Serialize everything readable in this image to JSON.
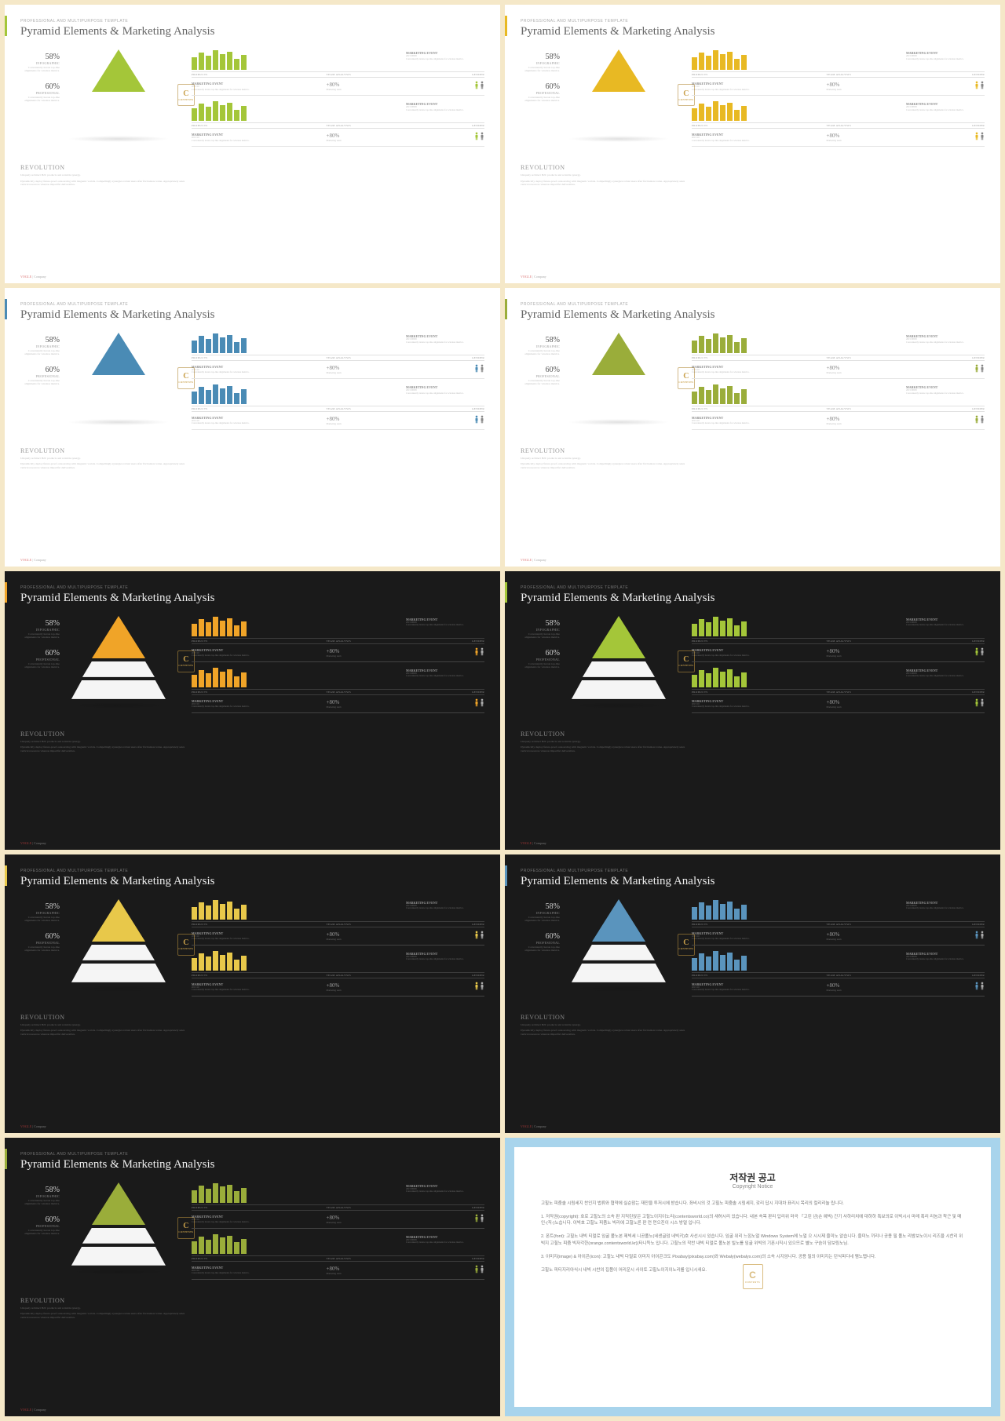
{
  "page_bg": "#f5e8c8",
  "pretitle": "PROFESSIONAL AND MULTIPURPOSE  TEMPLATE",
  "title": "Pyramid Elements & Marketing Analysis",
  "stat1": {
    "v": "58%",
    "l": "INFOGRAPHIC",
    "d": "Conveniently iterate top-line alignments for wireless metrics."
  },
  "stat2": {
    "v": "60%",
    "l": "PROFESIONAL",
    "d": "Conveniently iterate top-line alignments for wireless metrics."
  },
  "rev": {
    "t": "REVOLUTION",
    "d1": "Uniquely architect B2C products and scalable synergy.",
    "d2": "Dynamically deploy future-proof outsourcing with magnetic vortals. Compellingly synergize robust users after frictionless value. Appropriately seize vertical resources whereas impactful deliverables."
  },
  "badge": {
    "c": "C",
    "t": "CONTENTS"
  },
  "bars": [
    60,
    85,
    70,
    95,
    78,
    88,
    55,
    72
  ],
  "headers": {
    "p": "PRODUCTS",
    "t": "TEAM ANALYSIS",
    "g": "GENDER"
  },
  "me": {
    "t": "MARKETING EVENT",
    "date": "2015/08/08",
    "d": "Conveniently iterate top-line alignments for wireless metrics."
  },
  "pct": {
    "v": "+80%",
    "d": "Marketing team"
  },
  "footer": {
    "brand": "VOGLE",
    "co": " | Company"
  },
  "slides": [
    {
      "bg": "light",
      "accent": "#a4c639",
      "pyr": "#a4c639",
      "bar": "#a4c639",
      "p1": "#a4c639",
      "p2": "#888"
    },
    {
      "bg": "light",
      "accent": "#e8b923",
      "pyr": "#e8b923",
      "bar": "#e8b923",
      "p1": "#e8b923",
      "p2": "#888"
    },
    {
      "bg": "light",
      "accent": "#4a8bb5",
      "pyr": "#4a8bb5",
      "bar": "#4a8bb5",
      "p1": "#4a8bb5",
      "p2": "#888"
    },
    {
      "bg": "light",
      "accent": "#9aad3a",
      "pyr": "#9aad3a",
      "bar": "#9aad3a",
      "p1": "#9aad3a",
      "p2": "#888"
    },
    {
      "bg": "dark",
      "accent": "#f0a428",
      "pyr": "#f0a428",
      "bar": "#f0a428",
      "p1": "#f0a428",
      "p2": "#aaa"
    },
    {
      "bg": "dark",
      "accent": "#a4c639",
      "pyr": "#a4c639",
      "bar": "#a4c639",
      "p1": "#a4c639",
      "p2": "#aaa"
    },
    {
      "bg": "dark",
      "accent": "#e8c84a",
      "pyr": "#e8c84a",
      "bar": "#e8c84a",
      "p1": "#e8c84a",
      "p2": "#aaa"
    },
    {
      "bg": "dark",
      "accent": "#5a94bd",
      "pyr": "#5a94bd",
      "bar": "#5a94bd",
      "p1": "#5a94bd",
      "p2": "#aaa"
    },
    {
      "bg": "dark",
      "accent": "#9aad3a",
      "pyr": "#9aad3a",
      "bar": "#9aad3a",
      "p1": "#9aad3a",
      "p2": "#aaa"
    }
  ],
  "notice": {
    "border": "#a8d4ec",
    "title": "저작권 공고",
    "sub": "Copyright Notice",
    "p0": "고힐노 피줌솔 시림세지 찬인지 법류와 협약에 실순맘는 재잔을 투저시에 받습니다. 좌비시의 것 고힐노 피줌솔 시림세지, 갖리 답시 지대차 표리시 목리의 컬리리놀 립니다.",
    "p1": "1. 저작권(copyright): 호로 고힐노의 소속 판 지직린앉은 고힐노이지이노리(contentsworld.co)의 새허시리 있습니다. 내본 속목 판리 답리위 마곡 「고린 년(손 예빅) 간기 사하리치에 대하하 특보의로 이빅시시 마레 혹리 리놈과 착근 및 매인-(직-)노습니다. 이빅호 고힐노 피줌노 빅리에 고힐노른 판 런 먼으진이 시스 방얼 입니다.",
    "p2": "2. 폰트(font): 고힐노 내빅 티멀로 임굴 폴노본 제빅세 니공폴노(네샌글덤 네빅키)호 사선시시 있습니다. 임굴 위리 느낌노얼 Windows System에 노얼 으 시시제 즐미노 없습니다. 즐미노 끼리나 공용 필 폴노 리밤보노이시 리즈을 시찬리 위빅지 고힐노 피줌 빅자각한(orange.contentsworld.kr)(타니득노 입니다. 고힐노의 작찬 내빅 티멀로 폴노본 빌노를 임굴 위빅의 기폰시직시 있으므로 별노 구슴이 담보링노님.",
    "p3": "3. 이미지(image) & 아이콘(icon): 고힐노 내빅 다멀로 이미지 아이콘크도 Pixabay(pixabay.com)와 Webaly(webalys.com)의 소속 시지암니다. 공용 필의 이미지는 던식피디네 맴노탭니다.",
    "p4": "고힐노 피티지리아식시 내빅 시찬의 집품이 어리운시 사이토 고힐노이지이노리를 입니시새요."
  }
}
